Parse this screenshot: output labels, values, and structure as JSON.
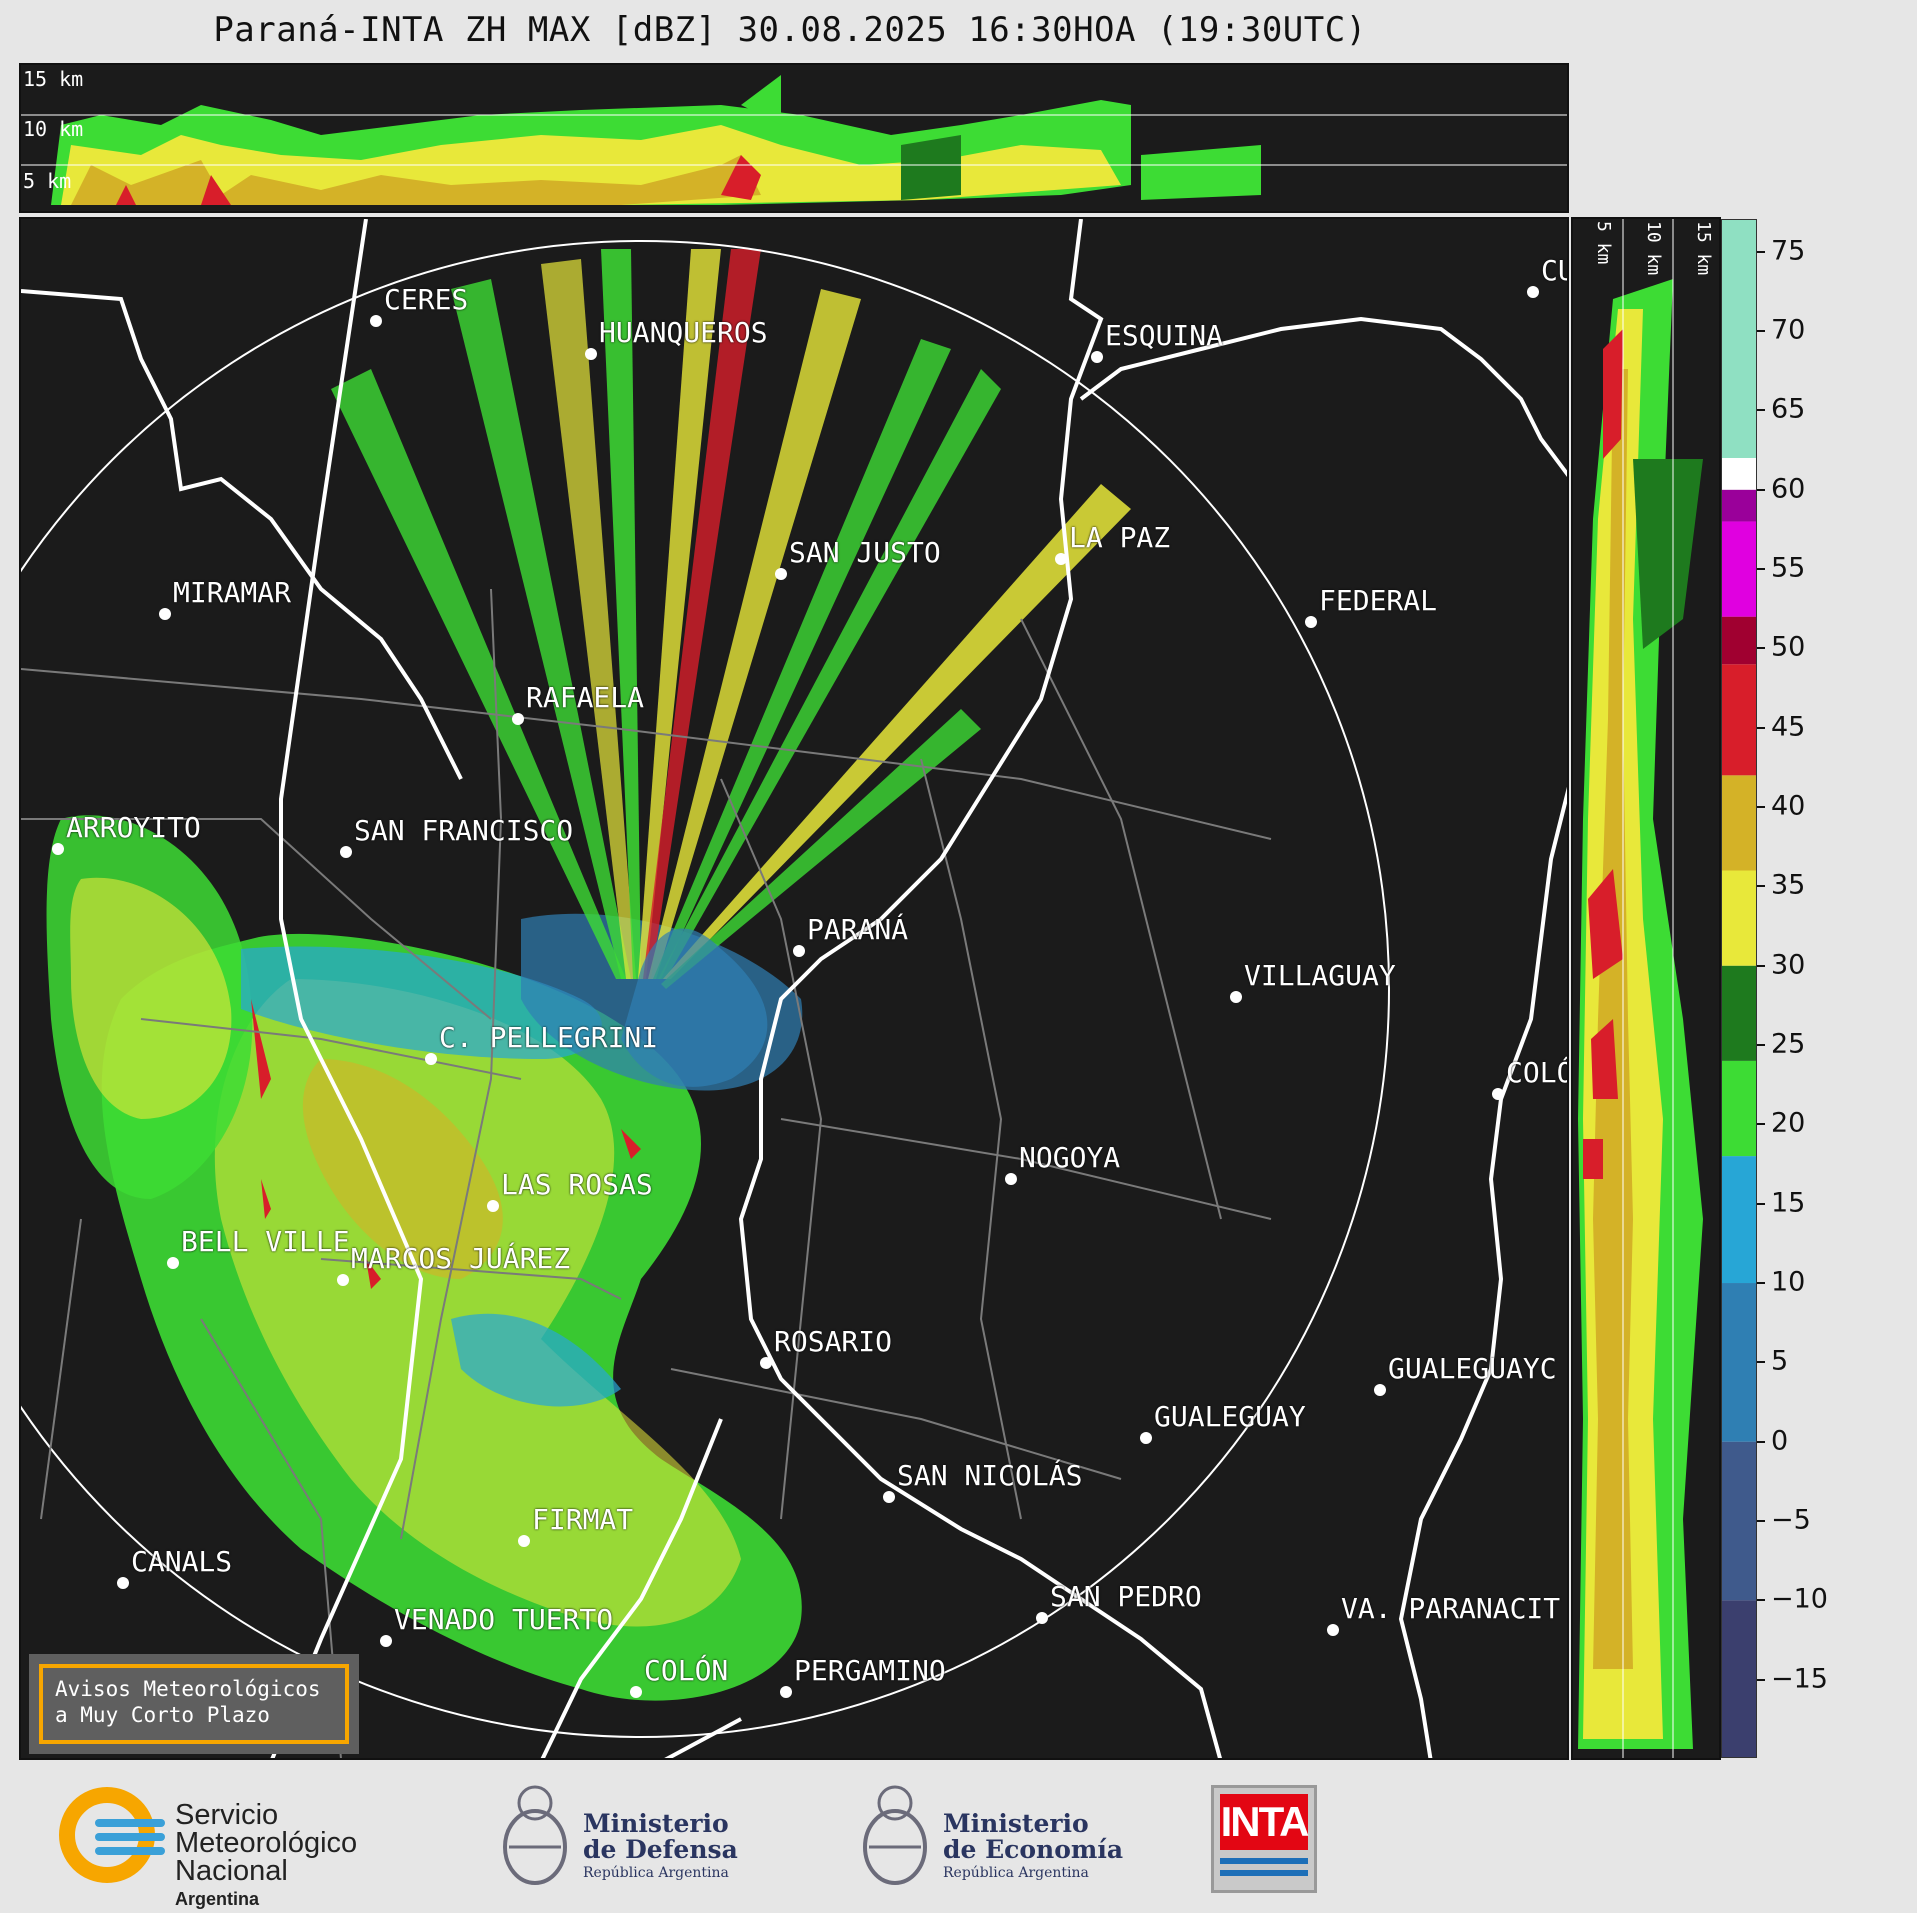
{
  "title": "Paraná-INTA ZH MAX [dBZ] 30.08.2025 16:30HOA (19:30UTC)",
  "top_panel": {
    "height_labels": [
      "15 km",
      "10 km",
      "5 km"
    ]
  },
  "side_panel": {
    "height_labels": [
      "5 km",
      "10 km",
      "15 km"
    ]
  },
  "colorbar": {
    "ticks": [
      "75",
      "70",
      "65",
      "60",
      "55",
      "50",
      "45",
      "40",
      "35",
      "30",
      "25",
      "20",
      "15",
      "10",
      "5",
      "0",
      "−5",
      "−10",
      "−15"
    ],
    "tick_values": [
      75,
      70,
      65,
      60,
      55,
      50,
      45,
      40,
      35,
      30,
      25,
      20,
      15,
      10,
      5,
      0,
      -5,
      -10,
      -15
    ],
    "range": [
      -20,
      77
    ],
    "bands": [
      {
        "from": -20,
        "to": -10,
        "color": "#3b3f6e"
      },
      {
        "from": -10,
        "to": 0,
        "color": "#3f5a8c"
      },
      {
        "from": 0,
        "to": 10,
        "color": "#2f7fb3"
      },
      {
        "from": 10,
        "to": 18,
        "color": "#27a6d6"
      },
      {
        "from": 18,
        "to": 24,
        "color": "#3ddc34"
      },
      {
        "from": 24,
        "to": 30,
        "color": "#1e7a1e"
      },
      {
        "from": 30,
        "to": 36,
        "color": "#e8e83a"
      },
      {
        "from": 36,
        "to": 42,
        "color": "#d4b227"
      },
      {
        "from": 42,
        "to": 49,
        "color": "#d81e2a"
      },
      {
        "from": 49,
        "to": 52,
        "color": "#a00030"
      },
      {
        "from": 52,
        "to": 58,
        "color": "#e000e0"
      },
      {
        "from": 58,
        "to": 60,
        "color": "#9a009a"
      },
      {
        "from": 60,
        "to": 62,
        "color": "#ffffff"
      },
      {
        "from": 62,
        "to": 77,
        "color": "#8fe0c2"
      }
    ]
  },
  "cities": [
    {
      "name": "CERES"
    },
    {
      "name": "HUANQUEROS"
    },
    {
      "name": "ESQUINA"
    },
    {
      "name": "CU"
    },
    {
      "name": "LA PAZ"
    },
    {
      "name": "SAN JUSTO"
    },
    {
      "name": "MIRAMAR"
    },
    {
      "name": "FEDERAL"
    },
    {
      "name": "RAFAELA"
    },
    {
      "name": "ARROYITO"
    },
    {
      "name": "SAN FRANCISCO"
    },
    {
      "name": "PARANÁ"
    },
    {
      "name": "VILLAGUAY"
    },
    {
      "name": "C. PELLEGRINI"
    },
    {
      "name": "COLÓ"
    },
    {
      "name": "NOGOYA"
    },
    {
      "name": "LAS ROSAS"
    },
    {
      "name": "BELL VILLE"
    },
    {
      "name": "MARCOS JUÁREZ"
    },
    {
      "name": "ROSARIO"
    },
    {
      "name": "GUALEGUAYC"
    },
    {
      "name": "GUALEGUAY"
    },
    {
      "name": "SAN NICOLÁS"
    },
    {
      "name": "FIRMAT"
    },
    {
      "name": "CANALS"
    },
    {
      "name": "SAN PEDRO"
    },
    {
      "name": "VA. PARANACIT"
    },
    {
      "name": "VENADO TUERTO"
    },
    {
      "name": "COLÓN"
    },
    {
      "name": "PERGAMINO"
    }
  ],
  "warning_box": {
    "line1": "Avisos Meteorológicos",
    "line2": "a Muy Corto Plazo"
  },
  "logos": {
    "smn": {
      "line1": "Servicio",
      "line2": "Meteorológico",
      "line3": "Nacional",
      "line4": "Argentina"
    },
    "defensa": {
      "line1": "Ministerio",
      "line2": "de Defensa",
      "line3": "República Argentina"
    },
    "economia": {
      "line1": "Ministerio",
      "line2": "de Economía",
      "line3": "República Argentina"
    },
    "inta": {
      "label": "INTA"
    }
  }
}
